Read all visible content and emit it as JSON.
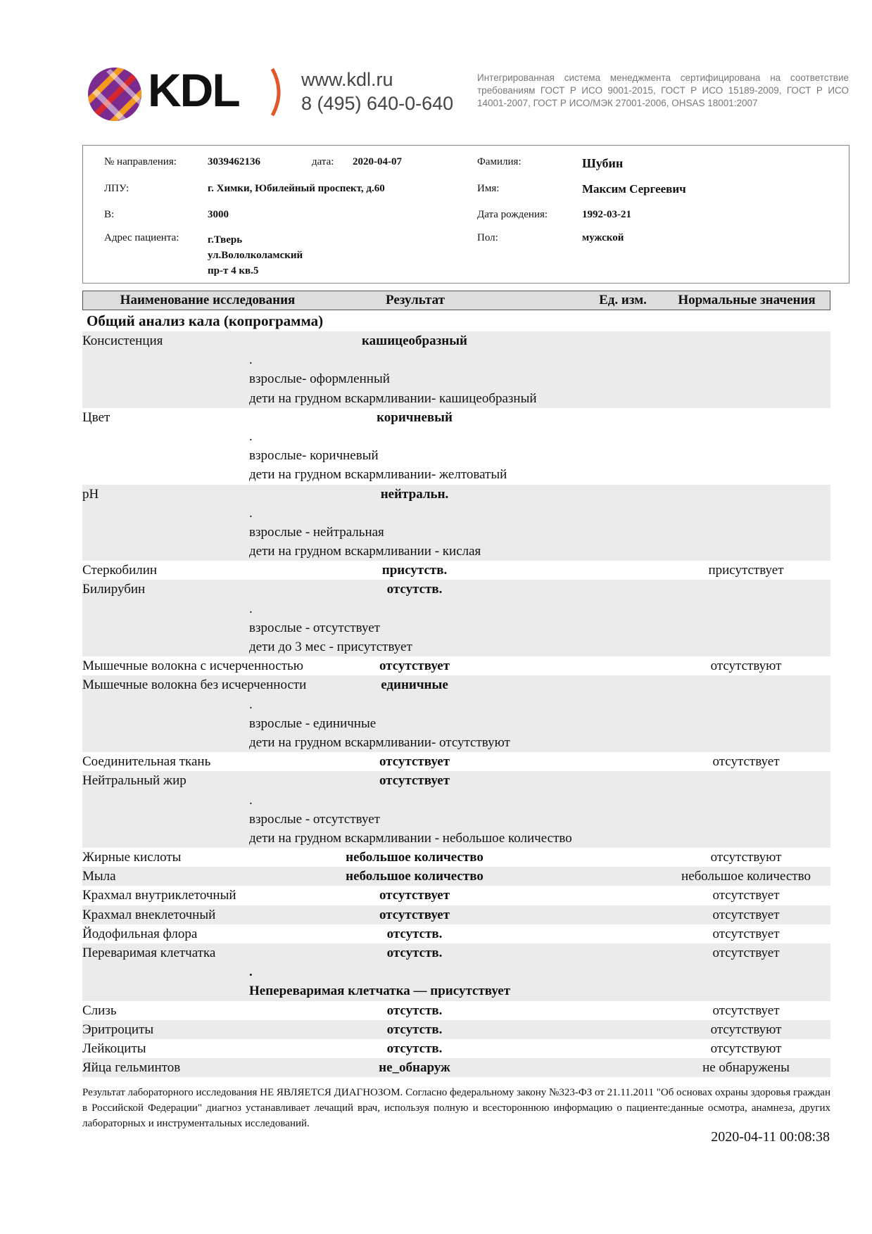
{
  "header": {
    "logo": "KDL",
    "website": "www.kdl.ru",
    "phone": "8 (495) 640-0-640",
    "certification": "Интегрированная система менеджмента сертифицирована на соответствие требованиям ГОСТ Р ИСО 9001-2015, ГОСТ Р ИСО 15189-2009, ГОСТ Р ИСО 14001-2007, ГОСТ Р ИСО/МЭК 27001-2006, OHSAS 18001:2007",
    "colors": {
      "logo_orange": "#f39a1e",
      "logo_purple": "#7b2b8f",
      "logo_red": "#d4272f"
    }
  },
  "patient": {
    "referral_label": "№ направления:",
    "referral": "3039462136",
    "date_label": "дата:",
    "date": "2020-04-07",
    "lpu_label": "ЛПУ:",
    "lpu": "г. Химки, Юбилейный проспект, д.60",
    "b_label": "В:",
    "b": "3000",
    "address_label": "Адрес пациента:",
    "address": [
      "г.Тверь",
      "ул.Вололколамский",
      "пр-т 4 кв.5"
    ],
    "surname_label": "Фамилия:",
    "surname": "Шубин",
    "name_label": "Имя:",
    "name": "Максим Сергеевич",
    "dob_label": "Дата рождения:",
    "dob": "1992-03-21",
    "sex_label": "Пол:",
    "sex": "мужской"
  },
  "table": {
    "columns": [
      "Наименование исследования",
      "Результат",
      "Ед. изм.",
      "Нормальные значения"
    ],
    "section": "Общий анализ кала (копрограмма)",
    "rows": [
      {
        "name": "Консистенция",
        "result": "кашицеобразный",
        "unit": "",
        "norm": "",
        "notes": [
          ".",
          "взрослые- оформленный",
          "дети на грудном вскармливании- кашицеобразный"
        ]
      },
      {
        "name": "Цвет",
        "result": "коричневый",
        "unit": "",
        "norm": "",
        "notes": [
          ".",
          "взрослые- коричневый",
          "дети на грудном вскармливании- желтоватый"
        ]
      },
      {
        "name": "pH",
        "result": "нейтральн.",
        "unit": "",
        "norm": "",
        "notes": [
          ".",
          "взрослые - нейтральная",
          "дети на грудном вскармливании - кислая"
        ]
      },
      {
        "name": "Стеркобилин",
        "result": "присутств.",
        "unit": "",
        "norm": "присутствует",
        "notes": []
      },
      {
        "name": "Билирубин",
        "result": "отсутств.",
        "unit": "",
        "norm": "",
        "notes": [
          ".",
          "взрослые - отсутствует",
          "дети до 3 мес - присутствует"
        ]
      },
      {
        "name": "Мышечные волокна с исчерченностью",
        "result": "отсутствует",
        "unit": "",
        "norm": "отсутствуют",
        "notes": []
      },
      {
        "name": "Мышечные волокна без исчерченности",
        "result": "единичные",
        "unit": "",
        "norm": "",
        "notes": [
          ".",
          "взрослые - единичные",
          "дети на грудном вскармливании- отсутствуют"
        ]
      },
      {
        "name": "Соединительная ткань",
        "result": "отсутствует",
        "unit": "",
        "norm": "отсутствует",
        "notes": []
      },
      {
        "name": "Нейтральный жир",
        "result": "отсутствует",
        "unit": "",
        "norm": "",
        "notes": [
          ".",
          "взрослые - отсутствует",
          "дети на грудном вскармливании - небольшое количество"
        ]
      },
      {
        "name": "Жирные кислоты",
        "result": "небольшое количество",
        "unit": "",
        "norm": "отсутствуют",
        "notes": []
      },
      {
        "name": "Мыла",
        "result": "небольшое количество",
        "unit": "",
        "norm": "небольшое количество",
        "notes": []
      },
      {
        "name": "Крахмал внутриклеточный",
        "result": "отсутствует",
        "unit": "",
        "norm": "отсутствует",
        "notes": []
      },
      {
        "name": "Крахмал внеклеточный",
        "result": "отсутствует",
        "unit": "",
        "norm": "отсутствует",
        "notes": []
      },
      {
        "name": "Йодофильная флора",
        "result": "отсутств.",
        "unit": "",
        "norm": "отсутствует",
        "notes": []
      },
      {
        "name": "Переваримая клетчатка",
        "result": "отсутств.",
        "unit": "",
        "norm": "отсутствует",
        "notes": [
          ".",
          "Непереваримая клетчатка — присутствует"
        ],
        "bold_notes": true
      },
      {
        "name": "Слизь",
        "result": "отсутств.",
        "unit": "",
        "norm": "отсутствует",
        "notes": []
      },
      {
        "name": "Эритроциты",
        "result": "отсутств.",
        "unit": "",
        "norm": "отсутствуют",
        "notes": []
      },
      {
        "name": "Лейкоциты",
        "result": "отсутств.",
        "unit": "",
        "norm": "отсутствуют",
        "notes": []
      },
      {
        "name": "Яйца гельминтов",
        "result": "не_обнаруж",
        "unit": "",
        "norm": "не обнаружены",
        "notes": []
      }
    ]
  },
  "footer": {
    "disclaimer": "Результат лабораторного исследования НЕ ЯВЛЯЕТСЯ ДИАГНОЗОМ. Согласно федеральному закону №323-ФЗ от 21.11.2011 \"Об основах охраны здоровья граждан в Российской Федерации\" диагноз устанавливает лечащий врач, используя полную и всестороннюю информацию о пациенте:данные осмотра, анамнеза, других лабораторных и инструментальных исследований.",
    "printed": "2020-04-11 00:08:38"
  }
}
